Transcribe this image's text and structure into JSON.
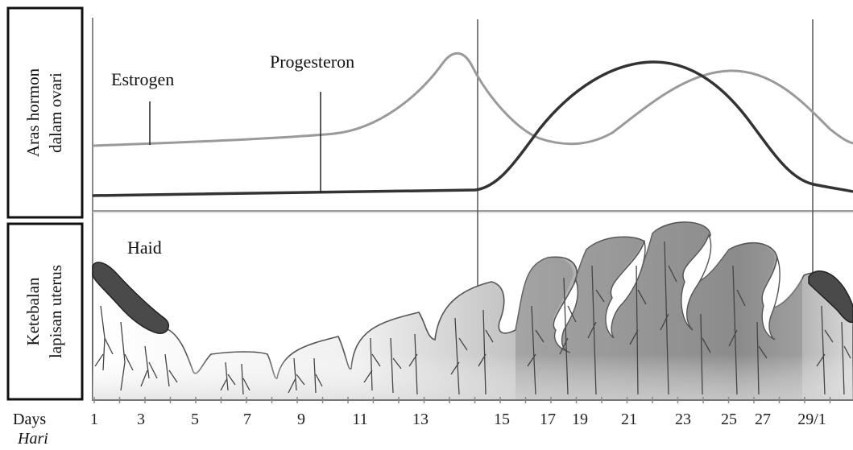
{
  "panels": {
    "hormone_label_line1": "Aras hormon",
    "hormone_label_line2": "dalam ovari",
    "uterus_label_line1": "Ketebalan",
    "uterus_label_line2": "lapisan uterus"
  },
  "annotations": {
    "estrogen": "Estrogen",
    "progesterone": "Progesteron",
    "menstruation": "Haid"
  },
  "axis": {
    "days_label": "Days",
    "hari_label": "Hari",
    "ticks": [
      "1",
      "3",
      "5",
      "7",
      "9",
      "11",
      "13",
      "15",
      "17",
      "19",
      "21",
      "23",
      "25",
      "27",
      "29/1"
    ]
  },
  "colors": {
    "estrogen_line": "#9a9a9a",
    "progesterone_line": "#3a3a3a",
    "endometrium_dark": "#7d7d7d",
    "endometrium_light": "#e8e8e8",
    "menstrual_blood": "#4a4a4a"
  }
}
